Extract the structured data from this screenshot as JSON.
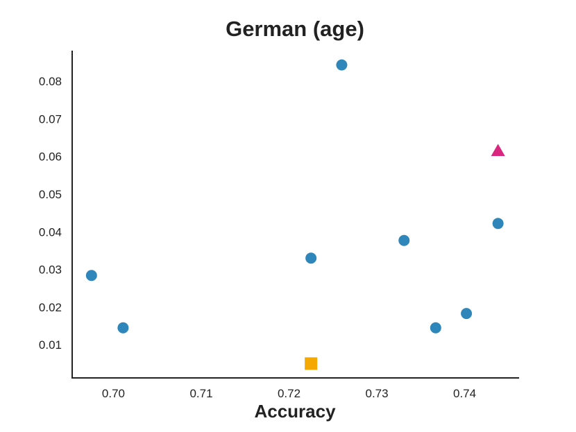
{
  "chart_data": {
    "type": "scatter",
    "title": "German (age)",
    "xlabel": "Accuracy",
    "ylabel": "",
    "xlim": [
      0.6953,
      0.7462
    ],
    "ylim": [
      0.0012,
      0.0881
    ],
    "xticks": [
      "0.70",
      "0.71",
      "0.72",
      "0.73",
      "0.74"
    ],
    "xtick_values": [
      0.7,
      0.71,
      0.72,
      0.73,
      0.74
    ],
    "yticks": [
      "0.01",
      "0.02",
      "0.03",
      "0.04",
      "0.05",
      "0.06",
      "0.07",
      "0.08"
    ],
    "ytick_values": [
      0.01,
      0.02,
      0.03,
      0.04,
      0.05,
      0.06,
      0.07,
      0.08
    ],
    "grid": false,
    "series": [
      {
        "marker": "circle",
        "color": "#2e86ba",
        "points": [
          {
            "x": 0.6975,
            "y": 0.0284
          },
          {
            "x": 0.7011,
            "y": 0.0145
          },
          {
            "x": 0.7225,
            "y": 0.033
          },
          {
            "x": 0.726,
            "y": 0.0843
          },
          {
            "x": 0.7331,
            "y": 0.0377
          },
          {
            "x": 0.7367,
            "y": 0.0145
          },
          {
            "x": 0.7402,
            "y": 0.0183
          },
          {
            "x": 0.7438,
            "y": 0.0422
          }
        ]
      },
      {
        "marker": "square",
        "color": "#f5a800",
        "points": [
          {
            "x": 0.7225,
            "y": 0.005
          }
        ]
      },
      {
        "marker": "triangle",
        "color": "#d9267f",
        "points": [
          {
            "x": 0.7438,
            "y": 0.0615
          }
        ]
      }
    ]
  }
}
